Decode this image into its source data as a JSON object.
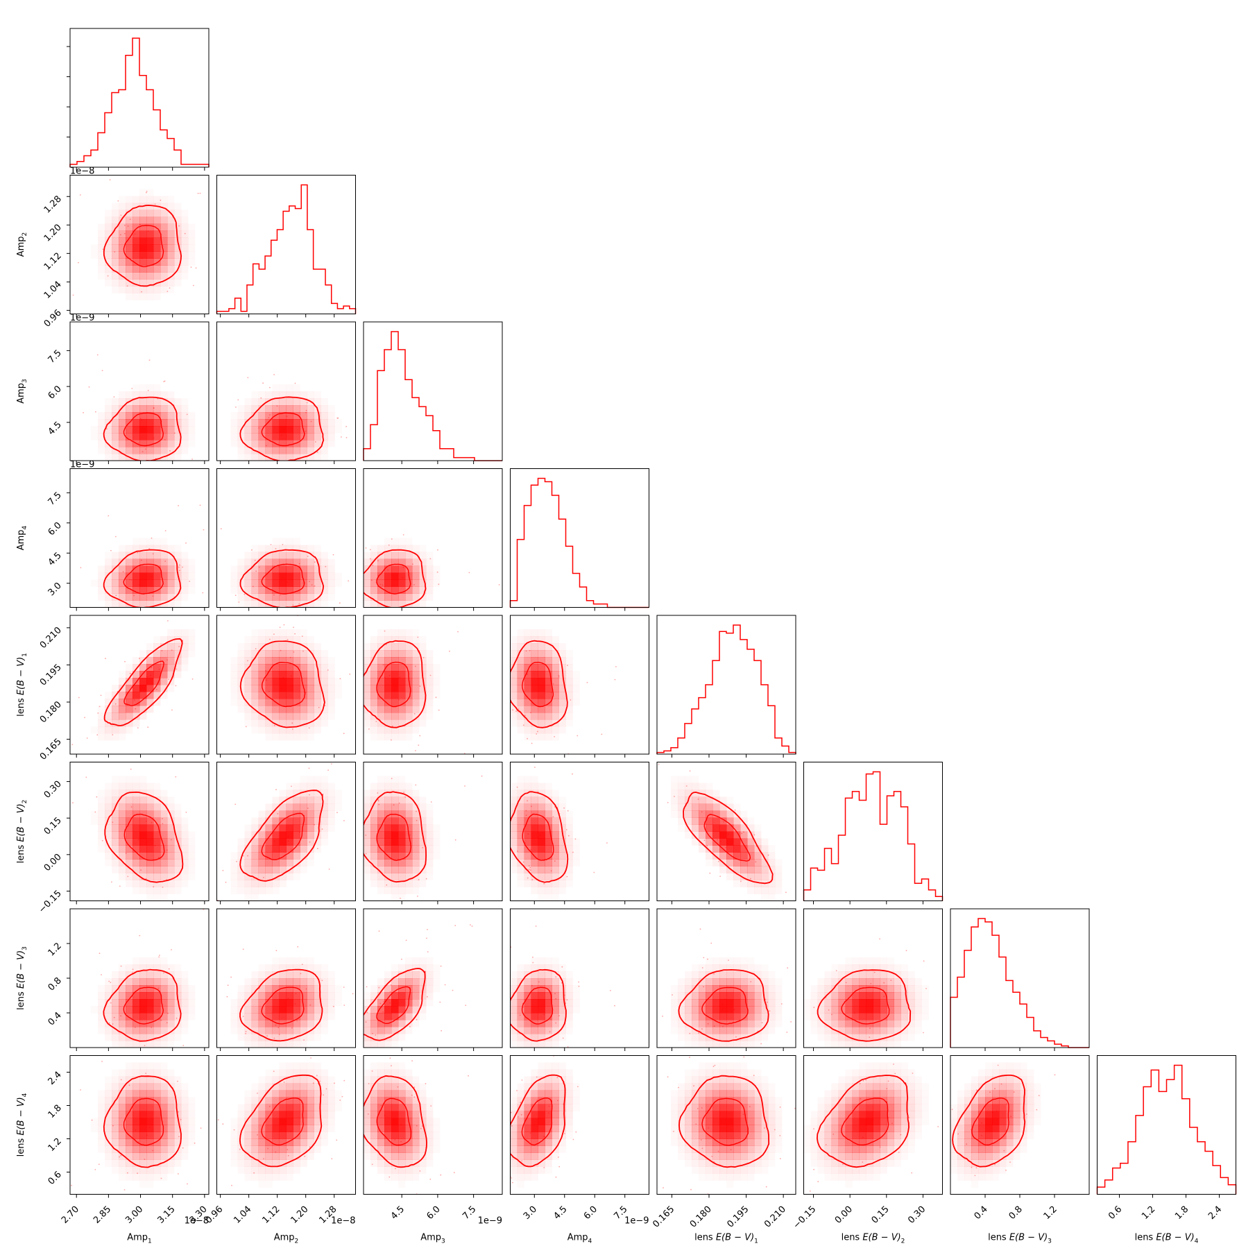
{
  "chart_data": {
    "type": "corner",
    "color": "#ff0000",
    "params": [
      {
        "name": "Amp₁",
        "sub": "1",
        "base": "Amp",
        "range": [
          2.67,
          3.32
        ],
        "ticks": [
          2.7,
          2.85,
          3.0,
          3.15,
          3.3
        ],
        "tick_labels": [
          "2.70",
          "2.85",
          "3.00",
          "3.15",
          "3.30"
        ],
        "offset": "1e−8",
        "center": 3.02,
        "sd": 0.085
      },
      {
        "name": "Amp₂",
        "sub": "2",
        "base": "Amp",
        "range": [
          0.95,
          1.34
        ],
        "ticks": [
          0.96,
          1.04,
          1.12,
          1.2,
          1.28
        ],
        "tick_labels": [
          "0.96",
          "1.04",
          "1.12",
          "1.20",
          "1.28"
        ],
        "offset": "1e−8",
        "center": 1.14,
        "sd": 0.055
      },
      {
        "name": "Amp₃",
        "sub": "3",
        "base": "Amp",
        "range": [
          2.9,
          8.7
        ],
        "ticks": [
          4.5,
          6.0,
          7.5
        ],
        "tick_labels": [
          "4.5",
          "6.0",
          "7.5"
        ],
        "offset": "1e−9",
        "center": 4.2,
        "sd": 0.65
      },
      {
        "name": "Amp₄",
        "sub": "4",
        "base": "Amp",
        "range": [
          1.8,
          8.7
        ],
        "ticks": [
          3.0,
          4.5,
          6.0,
          7.5
        ],
        "tick_labels": [
          "3.0",
          "4.5",
          "6.0",
          "7.5"
        ],
        "offset": "1e−9",
        "center": 3.2,
        "sd": 0.7
      },
      {
        "name": "lens E(B − V)₁",
        "sub": "1",
        "base": "lens E(B − V)",
        "range": [
          0.159,
          0.215
        ],
        "ticks": [
          0.165,
          0.18,
          0.195,
          0.21
        ],
        "tick_labels": [
          "0.165",
          "0.180",
          "0.195",
          "0.210"
        ],
        "offset": "",
        "center": 0.187,
        "sd": 0.0085
      },
      {
        "name": "lens E(B − V)₂",
        "sub": "2",
        "base": "lens E(B − V)",
        "range": [
          -0.19,
          0.38
        ],
        "ticks": [
          -0.15,
          0.0,
          0.15,
          0.3
        ],
        "tick_labels": [
          "−0.15",
          "0.00",
          "0.15",
          "0.30"
        ],
        "offset": "",
        "center": 0.07,
        "sd": 0.09
      },
      {
        "name": "lens E(B − V)₃",
        "sub": "3",
        "base": "lens E(B − V)",
        "range": [
          0.0,
          1.6
        ],
        "ticks": [
          0.4,
          0.8,
          1.2
        ],
        "tick_labels": [
          "0.4",
          "0.8",
          "1.2"
        ],
        "offset": "",
        "center": 0.48,
        "sd": 0.2
      },
      {
        "name": "lens E(B − V)₄",
        "sub": "4",
        "base": "lens E(B − V)",
        "range": [
          0.2,
          2.7
        ],
        "ticks": [
          0.6,
          1.2,
          1.8,
          2.4
        ],
        "tick_labels": [
          "0.6",
          "1.2",
          "1.8",
          "2.4"
        ],
        "offset": "",
        "center": 1.5,
        "sd": 0.4
      }
    ],
    "histograms": [
      [
        1,
        2,
        4,
        6,
        12,
        19,
        26,
        27,
        39,
        45,
        32,
        27,
        20,
        13,
        10,
        6,
        1,
        1,
        1,
        1
      ],
      [
        1,
        1,
        2,
        6,
        1,
        11,
        19,
        17,
        22,
        28,
        32,
        39,
        41,
        40,
        49,
        32,
        17,
        17,
        11,
        4,
        2,
        3,
        2
      ],
      [
        4,
        12,
        30,
        37,
        43,
        37,
        27,
        21,
        18,
        15,
        10,
        4,
        4,
        1,
        1,
        1,
        0,
        0,
        0,
        0
      ],
      [
        2,
        20,
        30,
        36,
        38,
        37,
        33,
        26,
        18,
        10,
        6,
        2,
        1,
        1,
        0,
        0,
        0,
        0,
        0,
        0
      ],
      [
        1,
        2,
        4,
        10,
        19,
        28,
        35,
        43,
        58,
        76,
        75,
        80,
        71,
        65,
        58,
        43,
        30,
        10,
        5,
        1
      ],
      [
        5,
        15,
        14,
        24,
        17,
        30,
        47,
        50,
        46,
        58,
        59,
        35,
        48,
        50,
        43,
        26,
        8,
        10,
        5,
        2
      ],
      [
        30,
        42,
        58,
        72,
        77,
        75,
        67,
        54,
        40,
        33,
        26,
        18,
        10,
        6,
        4,
        2,
        1,
        0,
        0,
        0
      ],
      [
        3,
        6,
        11,
        13,
        22,
        33,
        45,
        52,
        43,
        48,
        54,
        40,
        28,
        22,
        18,
        12,
        7,
        4
      ]
    ],
    "correlations": [
      [
        1,
        0.05,
        0.05,
        0.1,
        0.8,
        -0.3,
        0.1,
        0.0
      ],
      [
        0.05,
        1,
        0.05,
        0.05,
        -0.1,
        0.6,
        0.2,
        0.35
      ],
      [
        0.05,
        0.05,
        1,
        0.05,
        0.05,
        -0.1,
        0.6,
        -0.2
      ],
      [
        0.1,
        0.05,
        0.05,
        1,
        -0.1,
        -0.25,
        0.1,
        0.4
      ],
      [
        0.8,
        -0.1,
        0.05,
        -0.1,
        1,
        -0.75,
        0.05,
        -0.05
      ],
      [
        -0.3,
        0.6,
        -0.1,
        -0.25,
        -0.75,
        1,
        0.05,
        0.3
      ],
      [
        0.1,
        0.2,
        0.6,
        0.1,
        0.05,
        0.05,
        1,
        0.35
      ],
      [
        0.0,
        0.35,
        -0.2,
        0.4,
        -0.05,
        0.3,
        0.35,
        1
      ]
    ]
  }
}
